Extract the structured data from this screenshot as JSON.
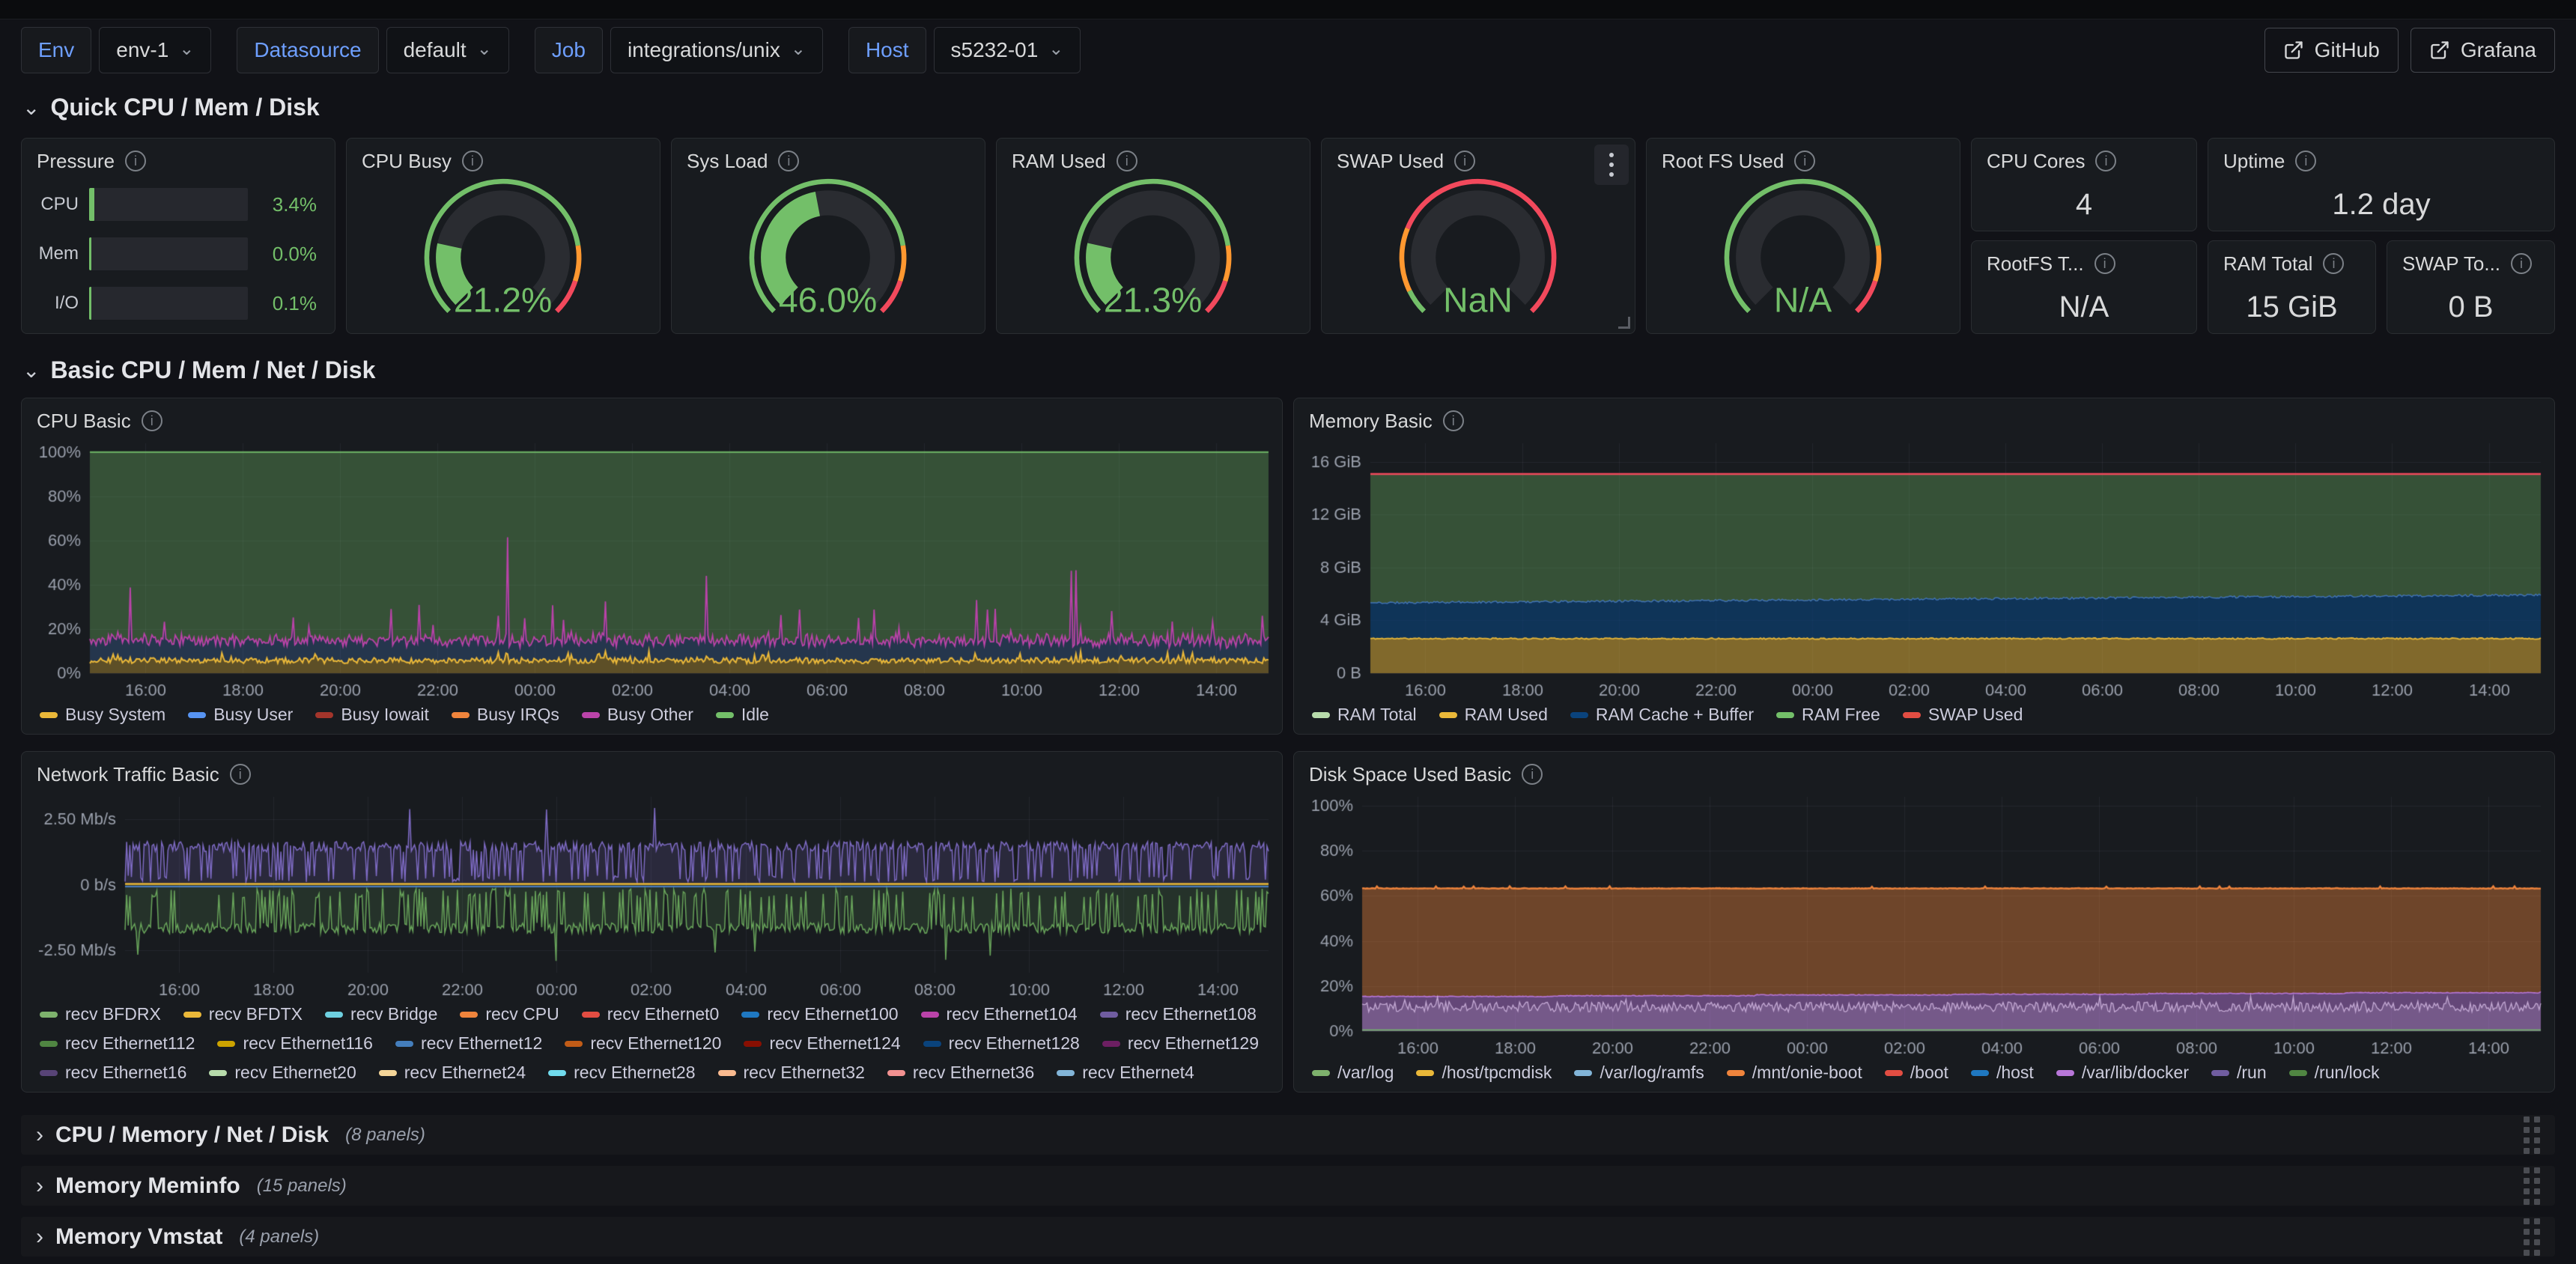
{
  "topbar": {
    "variables": [
      {
        "label": "Env",
        "value": "env-1"
      },
      {
        "label": "Datasource",
        "value": "default"
      },
      {
        "label": "Job",
        "value": "integrations/unix"
      },
      {
        "label": "Host",
        "value": "s5232-01"
      }
    ],
    "links": [
      {
        "label": "GitHub"
      },
      {
        "label": "Grafana"
      }
    ]
  },
  "sections": {
    "quick": {
      "title": "Quick CPU / Mem / Disk"
    },
    "basic": {
      "title": "Basic CPU / Mem / Net / Disk"
    }
  },
  "pressure": {
    "title": "Pressure",
    "rows": [
      {
        "label": "CPU",
        "pct": 3.4,
        "display": "3.4%"
      },
      {
        "label": "Mem",
        "pct": 0.0,
        "display": "0.0%"
      },
      {
        "label": "I/O",
        "pct": 0.1,
        "display": "0.1%"
      }
    ]
  },
  "gauges": [
    {
      "title": "CPU Busy",
      "display": "21.2%",
      "value": 21.2,
      "thresholds": [
        {
          "color": "#73BF69",
          "from": 0,
          "to": 0.8
        },
        {
          "color": "#FF9830",
          "from": 0.8,
          "to": 0.9
        },
        {
          "color": "#F2495C",
          "from": 0.9,
          "to": 1
        }
      ]
    },
    {
      "title": "Sys Load",
      "display": "46.0%",
      "value": 46.0,
      "thresholds": [
        {
          "color": "#73BF69",
          "from": 0,
          "to": 0.8
        },
        {
          "color": "#FF9830",
          "from": 0.8,
          "to": 0.9
        },
        {
          "color": "#F2495C",
          "from": 0.9,
          "to": 1
        }
      ]
    },
    {
      "title": "RAM Used",
      "display": "21.3%",
      "value": 21.3,
      "thresholds": [
        {
          "color": "#73BF69",
          "from": 0,
          "to": 0.8
        },
        {
          "color": "#FF9830",
          "from": 0.8,
          "to": 0.9
        },
        {
          "color": "#F2495C",
          "from": 0.9,
          "to": 1
        }
      ]
    },
    {
      "title": "SWAP Used",
      "display": "NaN",
      "value": 0,
      "thresholds": [
        {
          "color": "#73BF69",
          "from": 0,
          "to": 0.07
        },
        {
          "color": "#FF9830",
          "from": 0.07,
          "to": 0.25
        },
        {
          "color": "#F2495C",
          "from": 0.25,
          "to": 1
        }
      ]
    },
    {
      "title": "Root FS Used",
      "display": "N/A",
      "value": 0,
      "thresholds": [
        {
          "color": "#73BF69",
          "from": 0,
          "to": 0.8
        },
        {
          "color": "#FF9830",
          "from": 0.8,
          "to": 0.9
        },
        {
          "color": "#F2495C",
          "from": 0.9,
          "to": 1
        }
      ]
    }
  ],
  "stats": [
    {
      "title": "CPU Cores",
      "value": "4"
    },
    {
      "title": "Uptime",
      "value": "1.2 day"
    },
    {
      "title": "RootFS T...",
      "value": "N/A"
    },
    {
      "title": "RAM Total",
      "value": "15 GiB"
    },
    {
      "title": "SWAP To...",
      "value": "0 B"
    }
  ],
  "collapsed_rows": [
    {
      "title": "CPU / Memory / Net / Disk",
      "count": "(8 panels)"
    },
    {
      "title": "Memory Meminfo",
      "count": "(15 panels)"
    },
    {
      "title": "Memory Vmstat",
      "count": "(4 panels)"
    }
  ],
  "colors": {
    "accent_blue": "#6E9FFF",
    "green": "#73BF69",
    "orange": "#FF9830",
    "red": "#F2495C",
    "yellow": "#EAB839"
  },
  "chart_data": [
    {
      "type": "area",
      "title": "CPU Basic",
      "stacked": true,
      "xlabel": "",
      "ylabel": "",
      "x_ticks": [
        "16:00",
        "18:00",
        "20:00",
        "22:00",
        "00:00",
        "02:00",
        "04:00",
        "06:00",
        "08:00",
        "10:00",
        "12:00",
        "14:00"
      ],
      "y_ticks": [
        {
          "v": 0,
          "label": "0%"
        },
        {
          "v": 20,
          "label": "20%"
        },
        {
          "v": 40,
          "label": "40%"
        },
        {
          "v": 60,
          "label": "60%"
        },
        {
          "v": 80,
          "label": "80%"
        },
        {
          "v": 100,
          "label": "100%"
        }
      ],
      "ylim": [
        0,
        104
      ],
      "legend_position": "bottom",
      "grid": true,
      "series": [
        {
          "name": "Busy System",
          "color": "#EAB839",
          "approx": "noisy 3-9%, avg 5%"
        },
        {
          "name": "Busy User",
          "color": "#5794F2",
          "approx": "band from system line up to ~13-18%"
        },
        {
          "name": "Busy Iowait",
          "color": "#A3352B",
          "approx": "~0%"
        },
        {
          "name": "Busy IRQs",
          "color": "#EF843C",
          "approx": "~0%"
        },
        {
          "name": "Busy Other",
          "color": "#BA43A9",
          "approx": "spiky top boundary 13-60%"
        },
        {
          "name": "Idle",
          "color": "#73BF69",
          "approx": "remainder up to 100%"
        }
      ],
      "profile": {
        "sys_base": 4.4,
        "sys_noise": 2.6,
        "band_extra": 6.8,
        "band_noise": 4.4,
        "spike_prob": 0.03,
        "big_spike_prob": 0.004
      }
    },
    {
      "type": "area",
      "title": "Memory Basic",
      "stacked": true,
      "x_ticks": [
        "16:00",
        "18:00",
        "20:00",
        "22:00",
        "00:00",
        "02:00",
        "04:00",
        "06:00",
        "08:00",
        "10:00",
        "12:00",
        "14:00"
      ],
      "y_ticks": [
        {
          "v": 0,
          "label": "0 B"
        },
        {
          "v": 4,
          "label": "4 GiB"
        },
        {
          "v": 8,
          "label": "8 GiB"
        },
        {
          "v": 12,
          "label": "12 GiB"
        },
        {
          "v": 16,
          "label": "16 GiB"
        }
      ],
      "ylim": [
        0,
        17.4
      ],
      "legend_position": "bottom",
      "grid": true,
      "series": [
        {
          "name": "RAM Total",
          "color": "#B7DBAB",
          "approx": "15.1 GiB constant"
        },
        {
          "name": "RAM Used",
          "color": "#EAB839",
          "approx": "2.6 GiB constant"
        },
        {
          "name": "RAM Cache + Buffer",
          "color": "#0A437C",
          "approx": "2.7 rising to 3.3 GiB"
        },
        {
          "name": "RAM Free",
          "color": "#73BF69",
          "approx": "~9.8 down to 9.2 GiB (fills to total)"
        },
        {
          "name": "SWAP Used",
          "color": "#E24D42",
          "approx": "0 B (red line on top of stack at 15.1 GiB)"
        }
      ],
      "profile": {
        "used_gib": 2.62,
        "cache_top_start": 5.32,
        "cache_top_end": 5.92,
        "total_gib": 15.08
      }
    },
    {
      "type": "line",
      "title": "Network Traffic Basic",
      "stacked": false,
      "x_ticks": [
        "16:00",
        "18:00",
        "20:00",
        "22:00",
        "00:00",
        "02:00",
        "04:00",
        "06:00",
        "08:00",
        "10:00",
        "12:00",
        "14:00"
      ],
      "y_ticks": [
        {
          "v": 2.5,
          "label": "2.50 Mb/s"
        },
        {
          "v": 0,
          "label": "0 b/s"
        },
        {
          "v": -2.5,
          "label": "-2.50 Mb/s"
        }
      ],
      "ylim": [
        -3.35,
        3.35
      ],
      "legend_position": "bottom",
      "grid": true,
      "series": [
        {
          "name": "recv BFDRX",
          "color": "#7EB26D"
        },
        {
          "name": "recv BFDTX",
          "color": "#EAB839"
        },
        {
          "name": "recv Bridge",
          "color": "#6ED0E0"
        },
        {
          "name": "recv CPU",
          "color": "#EF843C"
        },
        {
          "name": "recv Ethernet0",
          "color": "#E24D42"
        },
        {
          "name": "recv Ethernet100",
          "color": "#1F78C1"
        },
        {
          "name": "recv Ethernet104",
          "color": "#BA43A9"
        },
        {
          "name": "recv Ethernet108",
          "color": "#705DA0"
        },
        {
          "name": "recv Ethernet112",
          "color": "#508642"
        },
        {
          "name": "recv Ethernet116",
          "color": "#CCA300"
        },
        {
          "name": "recv Ethernet12",
          "color": "#447EBC"
        },
        {
          "name": "recv Ethernet120",
          "color": "#C15C17"
        },
        {
          "name": "recv Ethernet124",
          "color": "#890F02"
        },
        {
          "name": "recv Ethernet128",
          "color": "#0A437C"
        },
        {
          "name": "recv Ethernet129",
          "color": "#6D1F62"
        },
        {
          "name": "recv Ethernet16",
          "color": "#584477"
        },
        {
          "name": "recv Ethernet20",
          "color": "#B7DBAB"
        },
        {
          "name": "recv Ethernet24",
          "color": "#F4D598"
        },
        {
          "name": "recv Ethernet28",
          "color": "#70DBED"
        },
        {
          "name": "recv Ethernet32",
          "color": "#F9BA8F"
        },
        {
          "name": "recv Ethernet36",
          "color": "#F29191"
        },
        {
          "name": "recv Ethernet4",
          "color": "#82B5D8"
        }
      ],
      "profile": {
        "recv_high": 1.45,
        "recv_low": 0.25,
        "recv_spike": 3.05,
        "trans_high": -1.65,
        "trans_low": -0.35,
        "trans_spike": -2.9,
        "notes": "purple bursty series ~+1.5 Mb/s with spikes to 3; green bursty series ~-1.7 Mb/s with spikes to -2.9; yellow flat at 0; blue flat just below 0"
      }
    },
    {
      "type": "area",
      "title": "Disk Space Used Basic",
      "stacked": false,
      "x_ticks": [
        "16:00",
        "18:00",
        "20:00",
        "22:00",
        "00:00",
        "02:00",
        "04:00",
        "06:00",
        "08:00",
        "10:00",
        "12:00",
        "14:00"
      ],
      "y_ticks": [
        {
          "v": 0,
          "label": "0%"
        },
        {
          "v": 20,
          "label": "20%"
        },
        {
          "v": 40,
          "label": "40%"
        },
        {
          "v": 60,
          "label": "60%"
        },
        {
          "v": 80,
          "label": "80%"
        },
        {
          "v": 100,
          "label": "100%"
        }
      ],
      "ylim": [
        0,
        104
      ],
      "legend_position": "bottom",
      "grid": true,
      "series": [
        {
          "name": "/var/log",
          "color": "#7EB26D",
          "approx": "~0.5%"
        },
        {
          "name": "/host/tpcmdisk",
          "color": "#EAB839",
          "approx": "~0%"
        },
        {
          "name": "/var/log/ramfs",
          "color": "#82B5D8",
          "approx": "~0%"
        },
        {
          "name": "/mnt/onie-boot",
          "color": "#EF843C",
          "approx": "63% flat (orange area)"
        },
        {
          "name": "/boot",
          "color": "#E24D42",
          "approx": "~0%"
        },
        {
          "name": "/host",
          "color": "#1F78C1",
          "approx": "~0%"
        },
        {
          "name": "/var/lib/docker",
          "color": "#B877D9",
          "approx": "15% rising to 17% (violet area)"
        },
        {
          "name": "/run",
          "color": "#705DA0",
          "approx": "noisy 8-13%"
        },
        {
          "name": "/run/lock",
          "color": "#508642",
          "approx": "~0%"
        }
      ],
      "profile": {
        "main_pct": 63.2,
        "docker_start": 15.2,
        "docker_end": 17.2,
        "noise_low": 8.5,
        "noise_high": 13.0
      }
    }
  ]
}
